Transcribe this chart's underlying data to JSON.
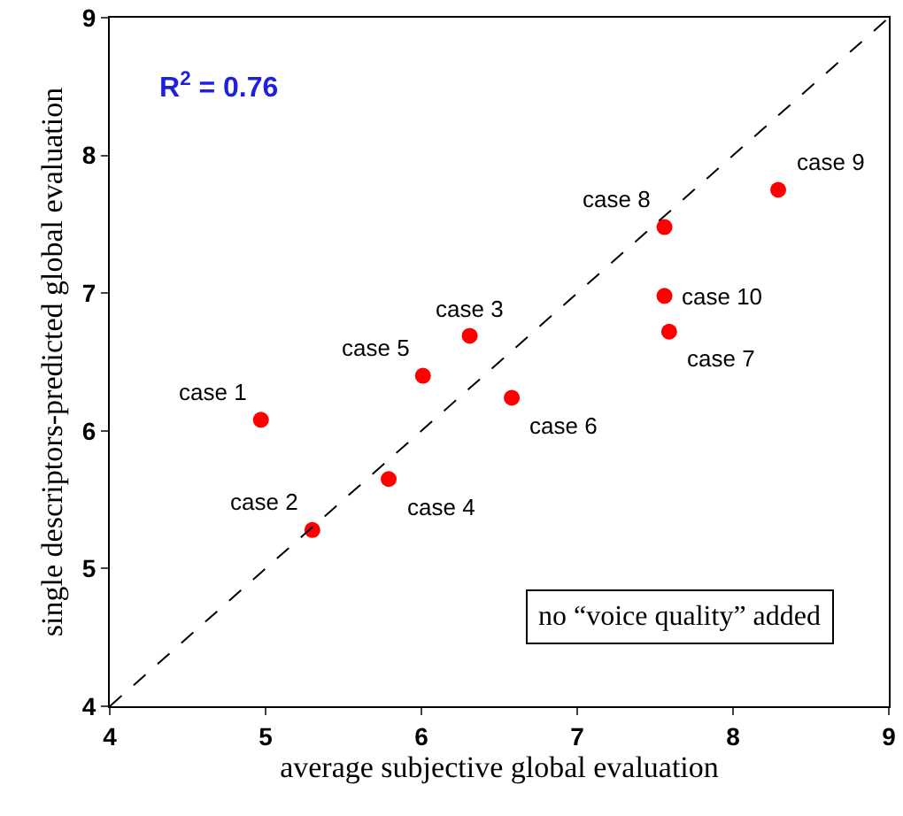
{
  "chart_data": {
    "type": "scatter",
    "xlabel": "average subjective global evaluation",
    "ylabel": "single descriptors-predicted global evaluation",
    "xlim": [
      4,
      9
    ],
    "ylim": [
      4,
      9
    ],
    "xticks": [
      4,
      5,
      6,
      7,
      8,
      9
    ],
    "yticks": [
      4,
      5,
      6,
      7,
      8,
      9
    ],
    "grid": false,
    "marker": "circle",
    "series": [
      {
        "color": "#ff0000",
        "x": [
          4.97,
          5.3,
          6.31,
          5.79,
          6.01,
          6.58,
          7.59,
          7.56,
          8.29,
          7.56
        ],
        "values": [
          6.08,
          5.28,
          6.69,
          5.65,
          6.4,
          6.24,
          6.72,
          7.48,
          7.75,
          6.98
        ]
      },
      {
        "type": "line",
        "color": "#000000",
        "line_style": "dashed",
        "marker": "none",
        "x": [
          4,
          9
        ],
        "values": [
          4,
          9
        ]
      }
    ],
    "annotations": [
      {
        "text": "case 1",
        "x": 4.97,
        "y": 6.08
      },
      {
        "text": "case 2",
        "x": 5.3,
        "y": 5.28
      },
      {
        "text": "case 3",
        "x": 6.31,
        "y": 6.69
      },
      {
        "text": "case 4",
        "x": 5.79,
        "y": 5.65
      },
      {
        "text": "case 5",
        "x": 6.01,
        "y": 6.4
      },
      {
        "text": "case 6",
        "x": 6.58,
        "y": 6.24
      },
      {
        "text": "case 7",
        "x": 7.59,
        "y": 6.72
      },
      {
        "text": "case 8",
        "x": 7.56,
        "y": 7.48
      },
      {
        "text": "case 9",
        "x": 8.29,
        "y": 7.75
      },
      {
        "text": "case 10",
        "x": 7.56,
        "y": 6.98
      },
      "R$^{2}$ = 0.76",
      "no “voice quality” added"
    ]
  }
}
